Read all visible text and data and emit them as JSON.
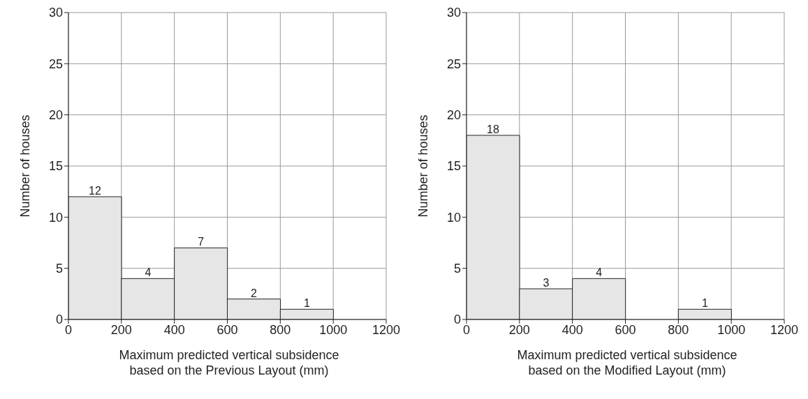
{
  "chart_data": [
    {
      "type": "histogram",
      "bins": [
        0,
        200,
        400,
        600,
        800,
        1000
      ],
      "values": [
        12,
        4,
        7,
        2,
        1
      ],
      "color": "#e6e6e6",
      "data_labels": true,
      "xlim": [
        0,
        1200
      ],
      "xticks": [
        0,
        200,
        400,
        600,
        800,
        1000,
        1200
      ],
      "ylim": [
        0,
        30
      ],
      "yticks": [
        0,
        5,
        10,
        15,
        20,
        25,
        30
      ],
      "grid": true,
      "xlabel": "Maximum predicted vertical subsidence based on the Previous Layout (mm)",
      "ylabel": "Number of houses"
    },
    {
      "type": "histogram",
      "bins": [
        0,
        200,
        400,
        600,
        800,
        1000
      ],
      "values": [
        18,
        3,
        4,
        0,
        1
      ],
      "color": "#e6e6e6",
      "value_labels": [
        "18",
        "3",
        "4",
        null,
        "1"
      ],
      "xlim": [
        0,
        1200
      ],
      "xticks": [
        0,
        200,
        400,
        600,
        800,
        1000,
        1200
      ],
      "ylim": [
        0,
        30
      ],
      "yticks": [
        0,
        5,
        10,
        15,
        20,
        25,
        30
      ],
      "grid": true,
      "xlabel": "Maximum predicted vertical subsidence based on the Modified Layout (mm)",
      "ylabel": "Number of houses"
    }
  ]
}
